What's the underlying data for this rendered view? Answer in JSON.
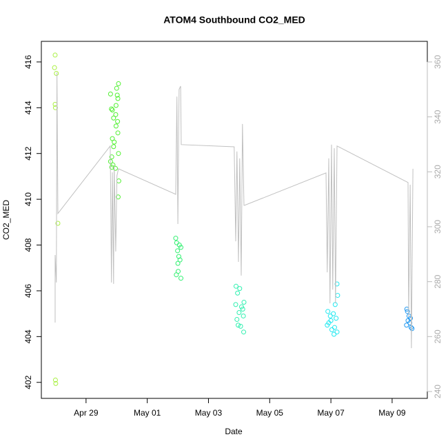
{
  "chart_data": {
    "type": "scatter",
    "title": "ATOM4 Southbound CO2_MED",
    "x_label": "Date",
    "y_label": "CO2_MED",
    "xlim": [
      27.54,
      40.15
    ],
    "xticks": [
      {
        "value": 29,
        "label": "Apr 29"
      },
      {
        "value": 31,
        "label": "May 01"
      },
      {
        "value": 33,
        "label": "May 03"
      },
      {
        "value": 35,
        "label": "May 05"
      },
      {
        "value": 37,
        "label": "May 07"
      },
      {
        "value": 39,
        "label": "May 09"
      }
    ],
    "ylim": [
      401.3,
      416.9
    ],
    "yticks": [
      402,
      404,
      406,
      408,
      410,
      412,
      414,
      416
    ],
    "y2lim": [
      237.5,
      367.5
    ],
    "y2ticks": [
      240,
      260,
      280,
      300,
      320,
      340,
      360
    ],
    "series": [
      {
        "color": "#a8f040",
        "x": [
          27.99,
          27.97,
          28.03,
          27.99,
          28.0,
          28.0,
          28.01,
          28.08
        ],
        "values": [
          416.3,
          415.75,
          415.5,
          414.15,
          414.0,
          402.1,
          401.95,
          408.95
        ]
      },
      {
        "color": "#50f030",
        "x": [
          30.06,
          30.0,
          29.8,
          30.02,
          30.04,
          29.98,
          29.83,
          29.86,
          29.97,
          29.9,
          30.03,
          29.98,
          30.04,
          29.86,
          29.92,
          29.9,
          30.06,
          29.84,
          29.8,
          29.88,
          29.84,
          29.96,
          30.07,
          30.05
        ],
        "values": [
          415.05,
          414.85,
          414.6,
          414.55,
          414.4,
          414.1,
          413.95,
          413.9,
          413.7,
          413.55,
          413.4,
          413.2,
          412.9,
          412.65,
          412.5,
          412.3,
          412.0,
          411.85,
          411.65,
          411.5,
          411.4,
          411.35,
          410.8,
          410.1
        ]
      },
      {
        "color": "#30f070",
        "x": [
          31.93,
          31.96,
          32.05,
          32.1,
          31.99,
          32.03,
          32.07,
          32.0,
          32.01,
          31.95,
          32.1
        ],
        "values": [
          408.3,
          408.1,
          408.0,
          407.9,
          407.75,
          407.5,
          407.35,
          407.2,
          406.85,
          406.7,
          406.55
        ]
      },
      {
        "color": "#30f0b0",
        "x": [
          33.9,
          34.02,
          33.95,
          34.16,
          33.89,
          34.08,
          34.12,
          34.0,
          34.14,
          33.93,
          33.97,
          34.05,
          34.15
        ],
        "values": [
          406.2,
          406.1,
          405.9,
          405.5,
          405.4,
          405.3,
          405.2,
          405.05,
          404.9,
          404.75,
          404.5,
          404.45,
          404.2
        ]
      },
      {
        "color": "#20e8f0",
        "x": [
          37.2,
          37.22,
          37.14,
          36.9,
          37.08,
          36.98,
          37.17,
          37.0,
          36.93,
          36.88,
          37.12,
          37.03,
          37.2,
          37.1
        ],
        "values": [
          406.3,
          405.8,
          405.4,
          405.1,
          405.0,
          404.9,
          404.8,
          404.7,
          404.6,
          404.5,
          404.4,
          404.3,
          404.2,
          404.1
        ]
      },
      {
        "color": "#2098f0",
        "x": [
          39.48,
          39.5,
          39.55,
          39.6,
          39.52,
          39.58,
          39.47,
          39.62,
          39.65
        ],
        "values": [
          405.2,
          405.1,
          404.9,
          404.8,
          404.7,
          404.6,
          404.5,
          404.4,
          404.35
        ]
      },
      {
        "color": "#c0c0c0",
        "type": "line",
        "axis": "y2",
        "x": [
          27.99,
          27.99,
          28.03,
          28.05,
          28.08,
          29.79,
          29.83,
          29.86,
          29.9,
          29.92,
          29.97,
          30.01,
          30.06,
          31.93,
          31.97,
          32.0,
          32.04,
          32.09,
          32.11,
          33.84,
          33.89,
          33.93,
          33.98,
          34.02,
          34.07,
          34.11,
          34.16,
          34.18,
          36.84,
          36.88,
          36.93,
          36.97,
          37.02,
          37.06,
          37.11,
          37.15,
          37.2,
          39.52,
          39.54,
          39.59,
          39.63,
          39.68
        ],
        "values": [
          265.1,
          289.7,
          279.7,
          356.2,
          304.8,
          329.4,
          279.7,
          319.8,
          279.2,
          322.3,
          291.0,
          318.6,
          321.1,
          311.8,
          347.4,
          301.0,
          350.0,
          351.2,
          329.9,
          329.1,
          294.7,
          327.4,
          287.2,
          324.9,
          282.2,
          337.4,
          307.8,
          307.8,
          319.6,
          283.4,
          324.9,
          272.1,
          329.9,
          277.1,
          328.6,
          272.1,
          329.4,
          316.1,
          267.1,
          315.3,
          255.8,
          321.1
        ]
      }
    ]
  }
}
